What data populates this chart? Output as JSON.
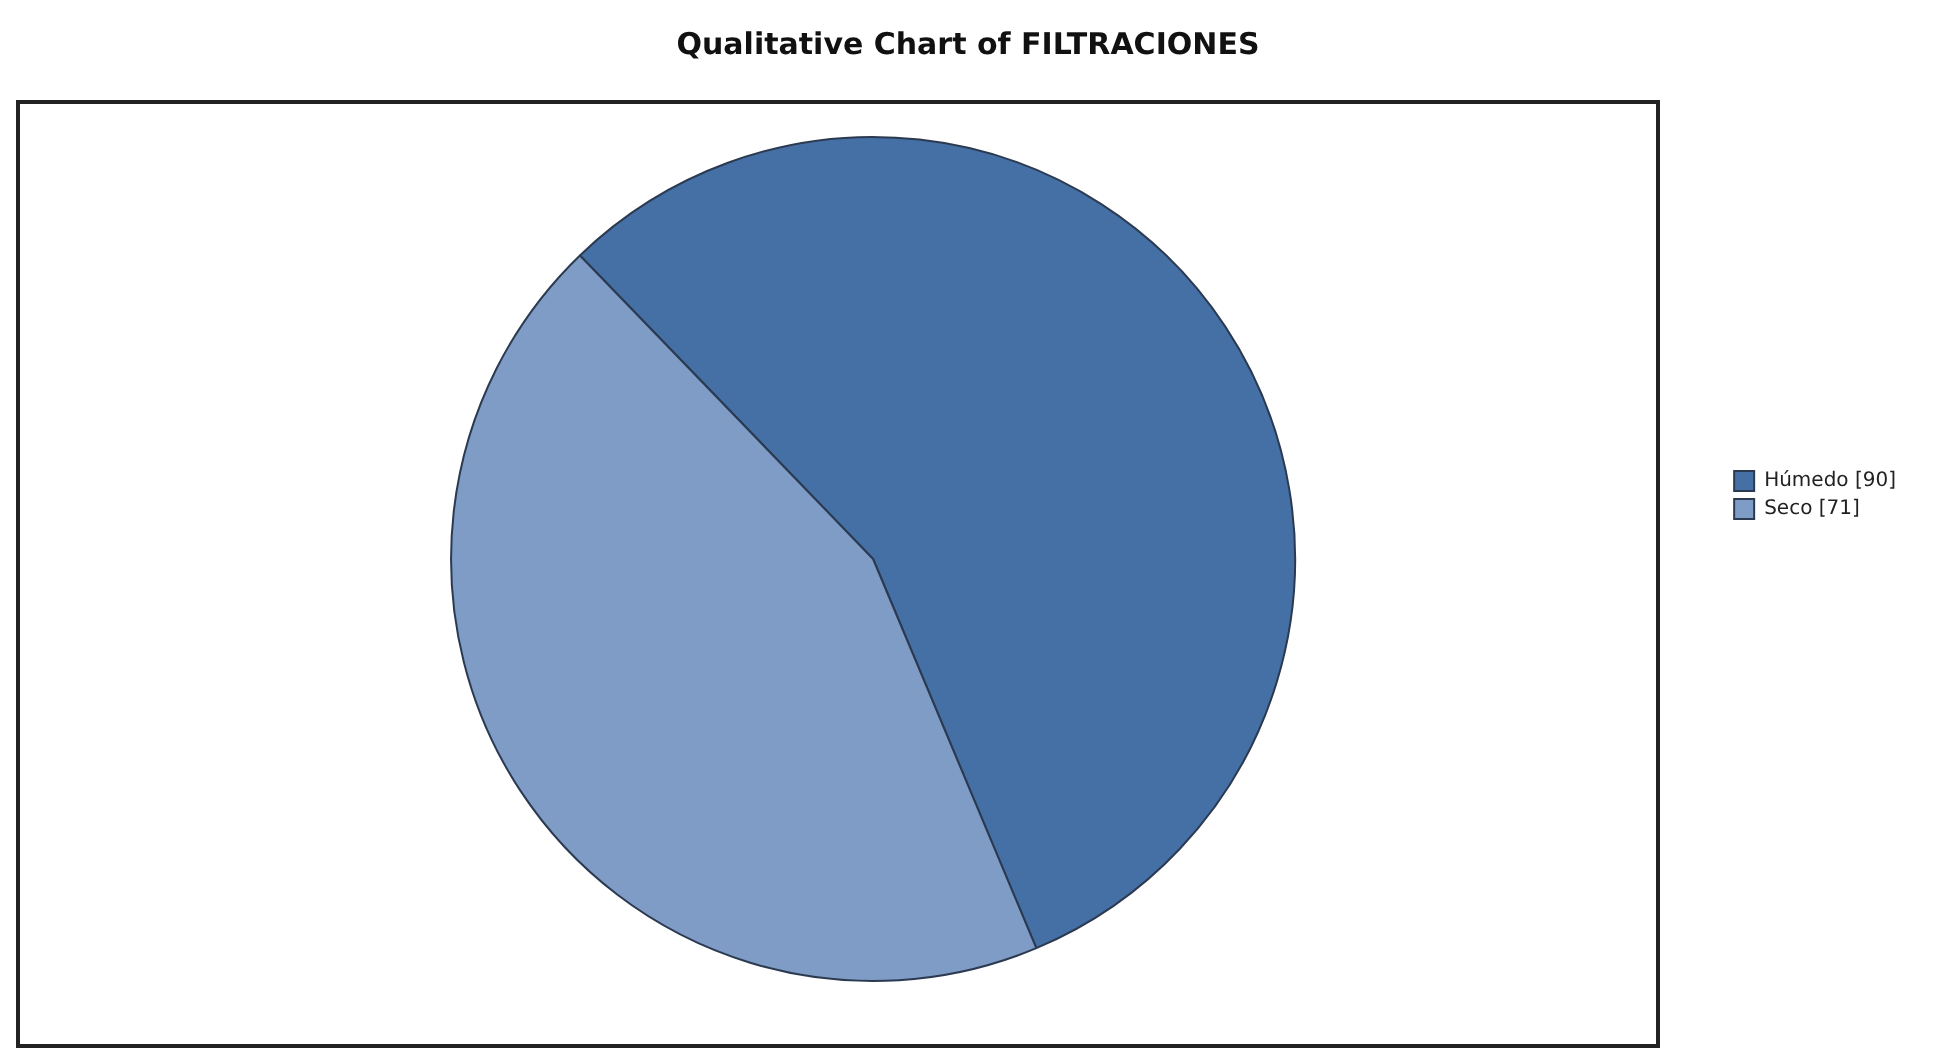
{
  "chart_data": {
    "type": "pie",
    "title": "Qualitative Chart of FILTRACIONES",
    "categories": [
      "Húmedo [90]",
      "Seco [71]"
    ],
    "values": [
      90,
      71
    ],
    "colors": [
      "#4570a6",
      "#7e9cc5"
    ],
    "legend": "right"
  }
}
